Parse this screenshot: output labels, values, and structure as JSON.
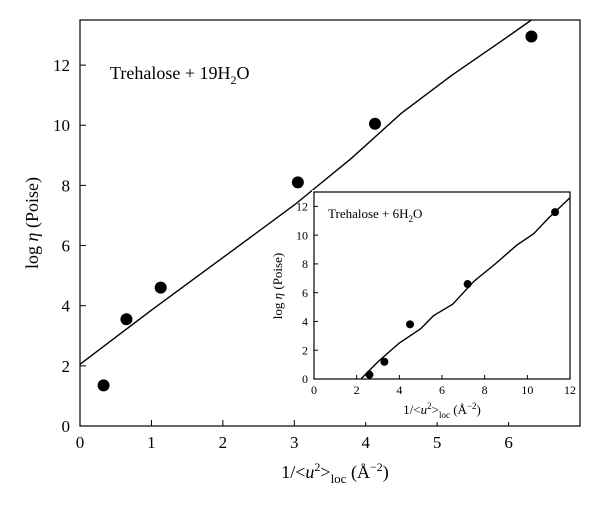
{
  "chart_data": [
    {
      "type": "scatter",
      "title": "",
      "annotation": {
        "prefix": "Trehalose + 19H",
        "subscript": "2",
        "suffix": "O"
      },
      "xlabel": {
        "prefix": "1/<",
        "italic": "u",
        "sup": "2",
        "mid": ">",
        "sub": "loc",
        "units": " (Å",
        "units_sup": "−2",
        "units_end": ")"
      },
      "ylabel": {
        "prefix": "log ",
        "italic": "η",
        "suffix": " (Poise)"
      },
      "xlim": [
        0,
        7
      ],
      "ylim": [
        0,
        13.5
      ],
      "xticks": [
        0,
        1,
        2,
        3,
        4,
        5,
        6
      ],
      "yticks": [
        0,
        2,
        4,
        6,
        8,
        10,
        12
      ],
      "grid": false,
      "points": [
        {
          "x": 0.33,
          "y": 1.35
        },
        {
          "x": 0.65,
          "y": 3.55
        },
        {
          "x": 1.13,
          "y": 4.6
        },
        {
          "x": 3.05,
          "y": 8.1
        },
        {
          "x": 4.13,
          "y": 10.05
        },
        {
          "x": 6.32,
          "y": 12.95
        }
      ],
      "fit_line": [
        {
          "x": 0,
          "y": 2.05
        },
        {
          "x": 1.0,
          "y": 3.85
        },
        {
          "x": 2.0,
          "y": 5.6
        },
        {
          "x": 3.0,
          "y": 7.35
        },
        {
          "x": 3.8,
          "y": 8.9
        },
        {
          "x": 4.5,
          "y": 10.4
        },
        {
          "x": 5.2,
          "y": 11.65
        },
        {
          "x": 5.9,
          "y": 12.8
        },
        {
          "x": 6.32,
          "y": 13.5
        }
      ]
    },
    {
      "type": "scatter",
      "title": "",
      "annotation": {
        "prefix": "Trehalose + 6H",
        "subscript": "2",
        "suffix": "O"
      },
      "xlabel": {
        "prefix": "1/<",
        "italic": "u",
        "sup": "2",
        "mid": ">",
        "sub": "loc",
        "units": " (Å",
        "units_sup": "−2",
        "units_end": ")"
      },
      "ylabel": {
        "prefix": "log ",
        "italic": "η",
        "suffix": " (Poise)"
      },
      "xlim": [
        0,
        12
      ],
      "ylim": [
        0,
        13
      ],
      "xticks": [
        0,
        2,
        4,
        6,
        8,
        10,
        12
      ],
      "yticks": [
        0,
        2,
        4,
        6,
        8,
        10,
        12
      ],
      "grid": false,
      "points": [
        {
          "x": 2.6,
          "y": 0.3
        },
        {
          "x": 3.3,
          "y": 1.2
        },
        {
          "x": 4.5,
          "y": 3.8
        },
        {
          "x": 7.2,
          "y": 6.6
        },
        {
          "x": 11.3,
          "y": 11.6
        }
      ],
      "fit_line": [
        {
          "x": 2.2,
          "y": 0
        },
        {
          "x": 3.0,
          "y": 1.2
        },
        {
          "x": 4.0,
          "y": 2.5
        },
        {
          "x": 5.0,
          "y": 3.5
        },
        {
          "x": 5.6,
          "y": 4.4
        },
        {
          "x": 6.5,
          "y": 5.2
        },
        {
          "x": 7.5,
          "y": 6.8
        },
        {
          "x": 8.5,
          "y": 8.0
        },
        {
          "x": 9.5,
          "y": 9.3
        },
        {
          "x": 10.3,
          "y": 10.1
        },
        {
          "x": 11.0,
          "y": 11.2
        },
        {
          "x": 12.0,
          "y": 12.6
        }
      ]
    }
  ]
}
